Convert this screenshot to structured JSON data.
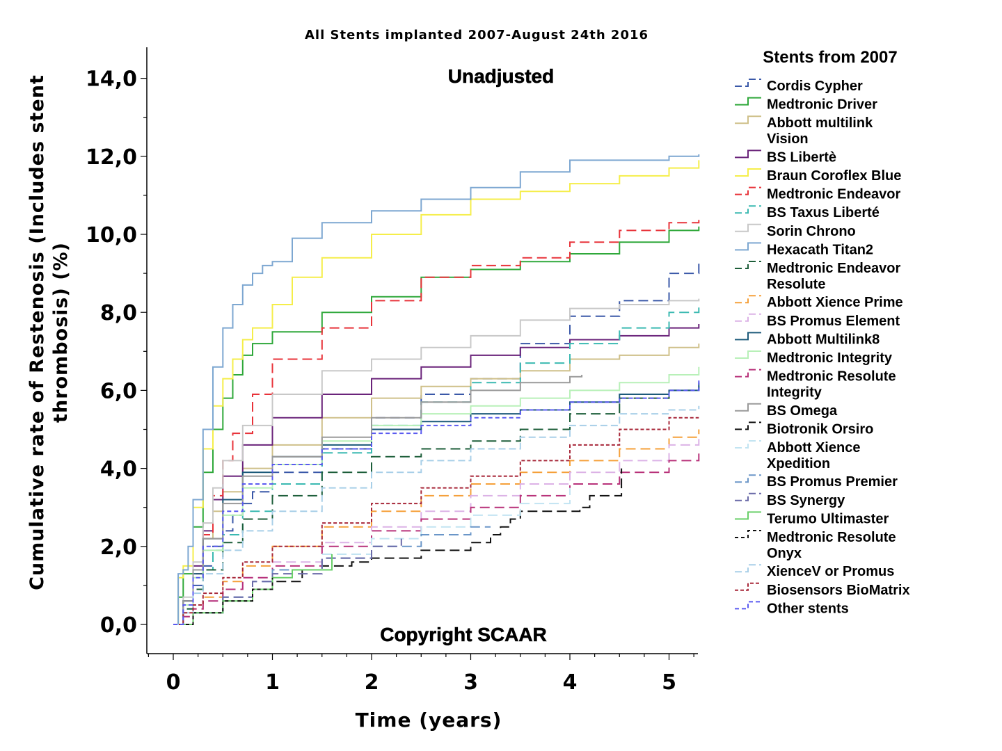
{
  "chart_data": {
    "type": "line",
    "title": "All Stents implanted 2007-August 24th 2016",
    "annotations": {
      "top": "Unadjusted",
      "bottom": "Copyright SCAAR"
    },
    "xlabel": "Time (years)",
    "ylabel": [
      "Cumulative rate of Restenosis (Includes stent",
      "thrombosis) (%)"
    ],
    "xlim": [
      -0.25,
      5.3
    ],
    "ylim": [
      -0.8,
      14.8
    ],
    "x_ticks": [
      0,
      1,
      2,
      3,
      4,
      5
    ],
    "x_tick_labels": [
      "0",
      "1",
      "2",
      "3",
      "4",
      "5"
    ],
    "y_ticks": [
      0,
      2,
      4,
      6,
      8,
      10,
      12,
      14
    ],
    "y_tick_labels": [
      "0,0",
      "2,0",
      "4,0",
      "6,0",
      "8,0",
      "10,0",
      "12,0",
      "14,0"
    ],
    "grid": false,
    "legend_title": "Stents from 2007",
    "legend_position": "right",
    "series": [
      {
        "name": "Cordis Cypher",
        "color": "#3a58a8",
        "dash": "14,7",
        "x": [
          0,
          0.1,
          0.2,
          0.3,
          0.4,
          0.5,
          0.6,
          0.7,
          0.8,
          1.0,
          1.5,
          2.0,
          2.5,
          3.0,
          3.5,
          4.0,
          4.5,
          5.0,
          5.3
        ],
        "y": [
          0,
          0.5,
          1.0,
          1.5,
          2.0,
          2.4,
          2.8,
          3.1,
          3.4,
          3.9,
          4.5,
          5.3,
          5.9,
          6.3,
          7.2,
          7.9,
          8.3,
          9.0,
          9.25
        ]
      },
      {
        "name": "Medtronic Driver",
        "color": "#2fa83a",
        "dash": "",
        "x": [
          0,
          0.05,
          0.1,
          0.2,
          0.3,
          0.4,
          0.5,
          0.6,
          0.7,
          0.8,
          1.0,
          1.5,
          2.0,
          2.5,
          3.0,
          3.5,
          4.0,
          4.5,
          5.0,
          5.3
        ],
        "y": [
          0,
          0.7,
          1.3,
          2.5,
          3.9,
          5.0,
          5.8,
          6.4,
          6.9,
          7.2,
          7.5,
          8.0,
          8.4,
          8.9,
          9.1,
          9.3,
          9.5,
          9.8,
          10.1,
          10.2
        ]
      },
      {
        "name": "Abbott multilink Vision",
        "color": "#cfc08a",
        "dash": "",
        "x": [
          0,
          0.1,
          0.2,
          0.3,
          0.4,
          0.5,
          0.7,
          1.0,
          1.5,
          2.0,
          2.5,
          3.0,
          3.5,
          4.0,
          4.5,
          5.0,
          5.3
        ],
        "y": [
          0,
          0.6,
          1.4,
          2.2,
          2.9,
          3.4,
          4.0,
          4.6,
          5.3,
          5.8,
          6.1,
          6.3,
          6.5,
          6.8,
          6.9,
          7.1,
          7.2
        ]
      },
      {
        "name": "BS Libertè",
        "color": "#6a237a",
        "dash": "",
        "x": [
          0,
          0.1,
          0.2,
          0.3,
          0.4,
          0.5,
          0.7,
          1.0,
          1.5,
          2.0,
          2.5,
          3.0,
          3.5,
          4.0,
          4.5,
          5.0,
          5.3
        ],
        "y": [
          0,
          0.6,
          1.5,
          2.4,
          3.2,
          3.8,
          4.6,
          5.3,
          5.9,
          6.3,
          6.6,
          6.9,
          7.1,
          7.3,
          7.4,
          7.6,
          7.7
        ]
      },
      {
        "name": "Braun Coroflex Blue",
        "color": "#f5ee4a",
        "dash": "",
        "x": [
          0,
          0.05,
          0.1,
          0.2,
          0.3,
          0.4,
          0.5,
          0.6,
          0.7,
          0.8,
          1.0,
          1.2,
          1.5,
          2.0,
          2.5,
          3.0,
          3.5,
          4.0,
          4.5,
          5.0,
          5.3
        ],
        "y": [
          0,
          1.2,
          1.5,
          3.0,
          4.5,
          5.6,
          6.3,
          6.8,
          7.3,
          7.6,
          8.2,
          8.9,
          9.4,
          10.0,
          10.5,
          10.9,
          11.1,
          11.3,
          11.5,
          11.7,
          11.9
        ]
      },
      {
        "name": "Medtronic Endeavor",
        "color": "#e8333a",
        "dash": "14,7",
        "x": [
          0,
          0.1,
          0.2,
          0.3,
          0.4,
          0.5,
          0.6,
          0.8,
          1.0,
          1.5,
          2.0,
          2.5,
          3.0,
          3.5,
          4.0,
          4.5,
          5.0,
          5.3
        ],
        "y": [
          0,
          0.5,
          1.3,
          2.3,
          3.3,
          4.2,
          4.9,
          5.9,
          6.8,
          7.6,
          8.3,
          8.9,
          9.2,
          9.4,
          9.8,
          10.1,
          10.3,
          10.4
        ]
      },
      {
        "name": "BS Taxus Liberté",
        "color": "#3ab9b1",
        "dash": "14,7",
        "x": [
          0,
          0.1,
          0.2,
          0.3,
          0.4,
          0.5,
          0.7,
          1.0,
          1.5,
          2.0,
          2.5,
          3.0,
          3.5,
          4.0,
          4.5,
          5.0,
          5.3
        ],
        "y": [
          0,
          0.4,
          0.9,
          1.4,
          1.9,
          2.3,
          2.9,
          3.6,
          4.4,
          5.1,
          5.7,
          6.2,
          6.7,
          7.2,
          7.6,
          8.0,
          8.2
        ]
      },
      {
        "name": "Sorin Chrono",
        "color": "#c8c8c8",
        "dash": "",
        "x": [
          0,
          0.1,
          0.2,
          0.3,
          0.4,
          0.5,
          0.7,
          1.0,
          1.5,
          2.0,
          2.5,
          3.0,
          3.5,
          4.0,
          4.5,
          5.0,
          5.3
        ],
        "y": [
          0,
          0.7,
          1.6,
          2.6,
          3.5,
          4.2,
          5.1,
          5.9,
          6.5,
          6.8,
          7.1,
          7.4,
          7.8,
          8.1,
          8.2,
          8.3,
          8.35
        ]
      },
      {
        "name": "Hexacath Titan2",
        "color": "#7da7d1",
        "dash": "",
        "x": [
          0,
          0.05,
          0.1,
          0.15,
          0.2,
          0.3,
          0.4,
          0.5,
          0.6,
          0.7,
          0.8,
          0.9,
          1.0,
          1.2,
          1.5,
          2.0,
          2.5,
          3.0,
          3.5,
          4.0,
          4.5,
          5.0,
          5.3
        ],
        "y": [
          0,
          1.3,
          1.4,
          2.0,
          3.2,
          5.0,
          6.6,
          7.6,
          8.2,
          8.7,
          9.0,
          9.2,
          9.3,
          9.9,
          10.3,
          10.6,
          10.9,
          11.2,
          11.6,
          11.9,
          11.9,
          12.0,
          12.05
        ]
      },
      {
        "name": "Medtronic Endeavor Resolute",
        "color": "#1d5e3a",
        "dash": "14,7",
        "x": [
          0,
          0.1,
          0.2,
          0.3,
          0.5,
          0.7,
          1.0,
          1.5,
          2.0,
          2.5,
          3.0,
          3.5,
          4.0,
          4.5,
          5.0,
          5.3
        ],
        "y": [
          0,
          0.4,
          0.9,
          1.4,
          2.1,
          2.7,
          3.3,
          3.9,
          4.3,
          4.5,
          4.7,
          5.0,
          5.4,
          5.8,
          6.0,
          6.1
        ]
      },
      {
        "name": "Abbott Xience Prime",
        "color": "#f5a03a",
        "dash": "14,7",
        "x": [
          0,
          0.1,
          0.2,
          0.3,
          0.5,
          0.7,
          1.0,
          1.5,
          2.0,
          2.5,
          3.0,
          3.5,
          4.0,
          4.5,
          5.0,
          5.3
        ],
        "y": [
          0,
          0.2,
          0.4,
          0.7,
          1.1,
          1.5,
          2.0,
          2.5,
          2.9,
          3.3,
          3.6,
          3.9,
          4.2,
          4.5,
          4.8,
          5.0
        ]
      },
      {
        "name": "BS Promus Element",
        "color": "#dcb2e6",
        "dash": "14,7",
        "x": [
          0,
          0.1,
          0.2,
          0.3,
          0.5,
          0.7,
          1.0,
          1.5,
          2.0,
          2.5,
          3.0,
          3.5,
          4.0,
          4.5,
          5.0,
          5.3
        ],
        "y": [
          0,
          0.2,
          0.4,
          0.6,
          0.9,
          1.2,
          1.6,
          2.1,
          2.5,
          2.9,
          3.3,
          3.6,
          3.9,
          4.2,
          4.6,
          4.8
        ]
      },
      {
        "name": "Abbott Multilink8",
        "color": "#1c5a7a",
        "dash": "",
        "x": [
          0,
          0.1,
          0.2,
          0.3,
          0.5,
          0.7,
          1.0,
          1.5,
          2.0,
          2.5,
          3.0,
          3.5,
          4.0,
          4.5,
          5.0,
          5.3
        ],
        "y": [
          0,
          0.6,
          1.3,
          2.2,
          3.2,
          3.9,
          4.3,
          4.6,
          5.0,
          5.2,
          5.4,
          5.5,
          5.7,
          5.9,
          6.0,
          6.2
        ]
      },
      {
        "name": "Medtronic Integrity",
        "color": "#b8f0b8",
        "dash": "",
        "x": [
          0,
          0.1,
          0.2,
          0.3,
          0.5,
          0.7,
          1.0,
          1.5,
          2.0,
          2.5,
          3.0,
          3.5,
          4.0,
          4.5,
          5.0,
          5.3
        ],
        "y": [
          0,
          0.5,
          1.2,
          1.9,
          2.8,
          3.5,
          4.1,
          4.7,
          5.1,
          5.4,
          5.6,
          5.8,
          6.0,
          6.2,
          6.4,
          6.6
        ]
      },
      {
        "name": "Medtronic Resolute Integrity",
        "color": "#b8327a",
        "dash": "14,7",
        "x": [
          0,
          0.1,
          0.2,
          0.3,
          0.5,
          0.7,
          1.0,
          1.5,
          2.0,
          2.5,
          3.0,
          3.5,
          4.0,
          4.5,
          5.0,
          5.3
        ],
        "y": [
          0,
          0.2,
          0.4,
          0.6,
          0.9,
          1.2,
          1.5,
          2.0,
          2.4,
          2.7,
          3.0,
          3.3,
          3.6,
          3.9,
          4.2,
          4.4
        ]
      },
      {
        "name": "BS Omega",
        "color": "#9a9a9a",
        "dash": "",
        "x": [
          0,
          0.1,
          0.2,
          0.3,
          0.5,
          0.7,
          1.0,
          1.5,
          2.0,
          2.5,
          3.0,
          3.5,
          4.0,
          4.12
        ],
        "y": [
          0,
          0.6,
          1.4,
          2.2,
          3.1,
          3.8,
          4.3,
          4.8,
          5.3,
          5.7,
          6.0,
          6.2,
          6.35,
          6.4
        ]
      },
      {
        "name": "Biotronik Orsiro",
        "color": "#111111",
        "dash": "14,7",
        "x": [
          0,
          0.2,
          0.5,
          0.8,
          1.0,
          1.3,
          1.5,
          1.8,
          2.0,
          2.5,
          3.0,
          3.2,
          3.3,
          3.4,
          3.5,
          3.8,
          4.0,
          4.1,
          4.2,
          4.5,
          4.52
        ],
        "y": [
          0,
          0.3,
          0.6,
          0.9,
          1.1,
          1.4,
          1.5,
          1.6,
          1.7,
          1.9,
          2.1,
          2.3,
          2.5,
          2.7,
          2.9,
          2.9,
          2.9,
          3.0,
          3.3,
          3.3,
          4.0
        ]
      },
      {
        "name": "Abbott Xience Xpedition",
        "color": "#c2e4f2",
        "dash": "14,7",
        "x": [
          0,
          0.2,
          0.5,
          0.8,
          1.0,
          1.5,
          2.0,
          2.5,
          3.0,
          3.5,
          4.0
        ],
        "y": [
          0,
          0.3,
          0.7,
          1.1,
          1.4,
          1.8,
          2.2,
          2.5,
          2.8,
          3.1,
          3.5
        ]
      },
      {
        "name": "BS Promus Premier",
        "color": "#6a96c8",
        "dash": "14,7",
        "x": [
          0,
          0.2,
          0.5,
          0.8,
          1.0,
          1.5,
          2.0,
          2.5,
          3.0,
          3.2
        ],
        "y": [
          0,
          0.3,
          0.7,
          1.1,
          1.4,
          1.7,
          2.0,
          2.3,
          2.5,
          2.5
        ]
      },
      {
        "name": "BS Synergy",
        "color": "#6a6aa8",
        "dash": "14,7",
        "x": [
          0,
          0.2,
          0.5,
          0.8,
          1.0,
          1.5,
          2.0,
          2.3
        ],
        "y": [
          0,
          0.3,
          0.7,
          1.1,
          1.3,
          1.7,
          2.0,
          2.2
        ]
      },
      {
        "name": "Terumo Ultimaster",
        "color": "#6ad06a",
        "dash": "",
        "x": [
          0,
          0.2,
          0.5,
          0.8,
          1.0,
          1.2,
          1.5,
          1.6
        ],
        "y": [
          0,
          0.3,
          0.6,
          0.9,
          1.2,
          1.4,
          1.4,
          1.8
        ]
      },
      {
        "name": "Medtronic Resolute Onyx",
        "color": "#111111",
        "dash": "5,4",
        "x": [
          0,
          0.2,
          0.5,
          0.8,
          1.0
        ],
        "y": [
          0,
          0.3,
          0.6,
          0.9,
          1.2
        ]
      },
      {
        "name": "XienceV or Promus",
        "color": "#a8cfe8",
        "dash": "10,5",
        "x": [
          0,
          0.1,
          0.2,
          0.3,
          0.5,
          0.7,
          1.0,
          1.5,
          2.0,
          2.5,
          3.0,
          3.5,
          4.0,
          4.5,
          5.0,
          5.3
        ],
        "y": [
          0,
          0.3,
          0.8,
          1.3,
          1.9,
          2.4,
          2.9,
          3.5,
          3.9,
          4.2,
          4.5,
          4.8,
          5.1,
          5.4,
          5.5,
          5.6
        ]
      },
      {
        "name": "Biosensors BioMatrix",
        "color": "#a8283a",
        "dash": "5,3",
        "x": [
          0,
          0.1,
          0.2,
          0.3,
          0.5,
          0.7,
          1.0,
          1.5,
          2.0,
          2.5,
          3.0,
          3.5,
          4.0,
          4.5,
          5.0,
          5.3
        ],
        "y": [
          0,
          0.3,
          0.5,
          0.8,
          1.2,
          1.6,
          2.0,
          2.6,
          3.1,
          3.5,
          3.8,
          4.2,
          4.6,
          5.0,
          5.3,
          5.3
        ]
      },
      {
        "name": "Other stents",
        "color": "#5a5af0",
        "dash": "6,4",
        "x": [
          0,
          0.1,
          0.2,
          0.3,
          0.5,
          0.7,
          1.0,
          1.5,
          2.0,
          2.5,
          3.0,
          3.5,
          4.0,
          4.5,
          5.0,
          5.3
        ],
        "y": [
          0,
          0.5,
          1.2,
          2.0,
          2.9,
          3.6,
          4.1,
          4.5,
          4.9,
          5.1,
          5.3,
          5.5,
          5.7,
          5.8,
          6.0,
          6.3
        ]
      }
    ]
  }
}
